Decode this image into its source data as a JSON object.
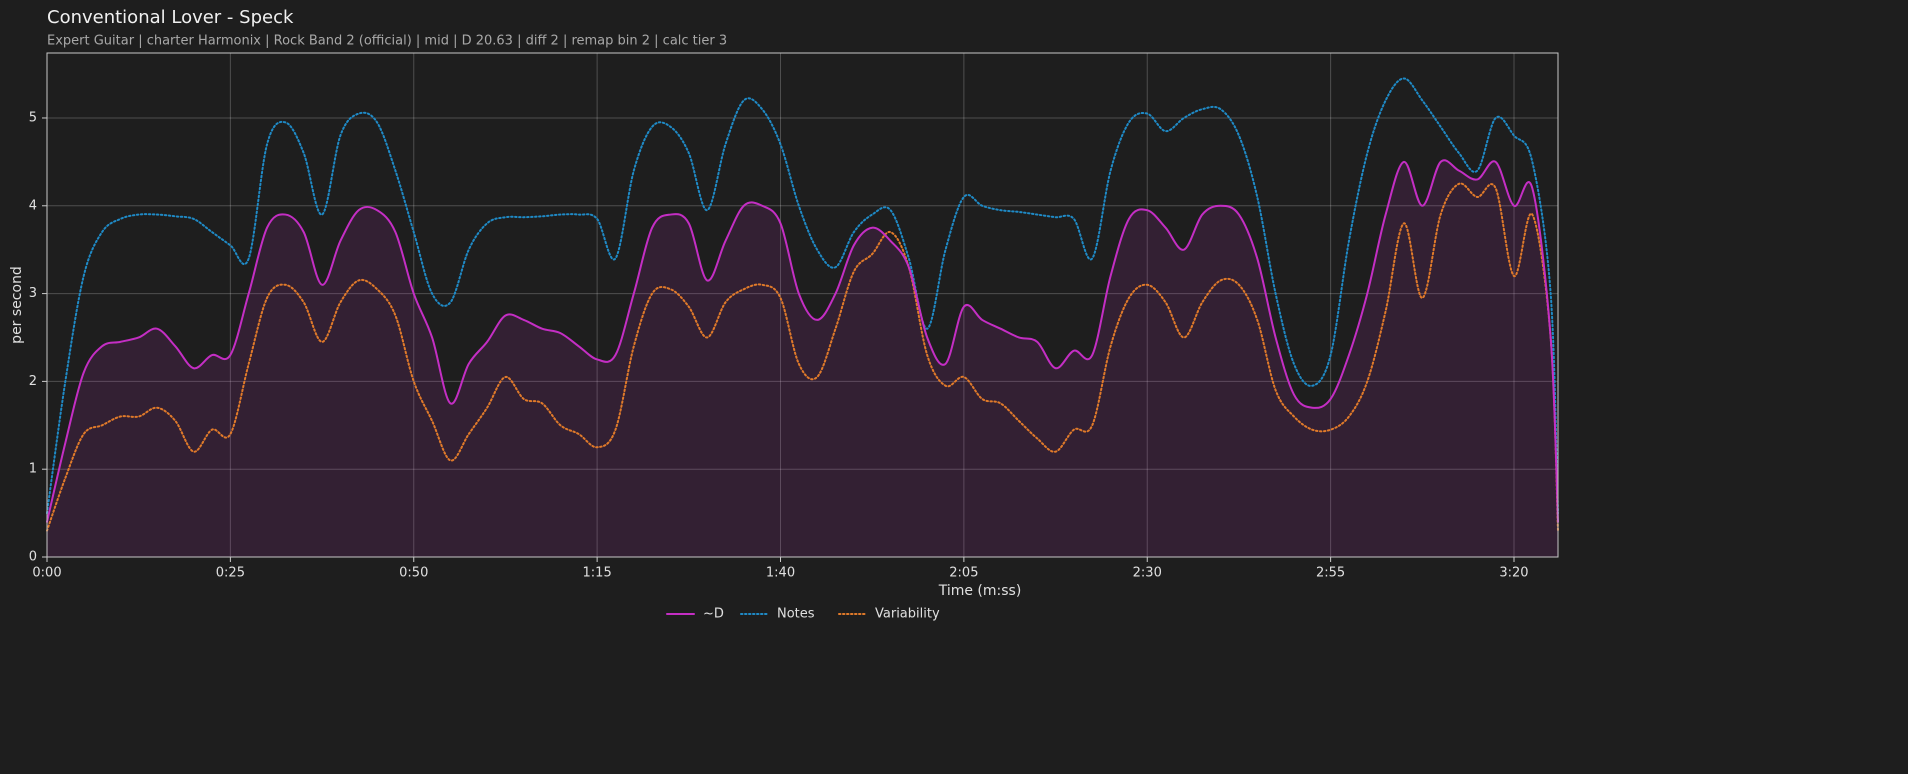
{
  "chart_data": {
    "type": "line",
    "title": "Conventional Lover - Speck",
    "subtitle": "Expert Guitar  |  charter Harmonix  |  Rock Band 2 (official)  |  mid  |  D 20.63  |  diff 2  |  remap bin 2  |  calc tier 3",
    "xlabel": "Time (m:ss)",
    "ylabel": "per second",
    "x": [
      0,
      2.5,
      5,
      7.5,
      10,
      12.5,
      15,
      17.5,
      20,
      22.5,
      25,
      27.5,
      30,
      32.5,
      35,
      37.5,
      40,
      42.5,
      45,
      47.5,
      50,
      52.5,
      55,
      57.5,
      60,
      62.5,
      65,
      67.5,
      70,
      72.5,
      75,
      77.5,
      80,
      82.5,
      85,
      87.5,
      90,
      92.5,
      95,
      97.5,
      100,
      102.5,
      105,
      107.5,
      110,
      112.5,
      115,
      117.5,
      120,
      122.5,
      125,
      127.5,
      130,
      132.5,
      135,
      137.5,
      140,
      142.5,
      145,
      147.5,
      150,
      152.5,
      155,
      157.5,
      160,
      162.5,
      165,
      167.5,
      170,
      172.5,
      175,
      177.5,
      180,
      182.5,
      185,
      187.5,
      190,
      192.5,
      195,
      197.5,
      200,
      202.5,
      205,
      206
    ],
    "series": [
      {
        "name": "~D",
        "color": "#c42ec4",
        "dash": "solid",
        "fill": true,
        "values": [
          0.4,
          1.3,
          2.1,
          2.4,
          2.45,
          2.5,
          2.6,
          2.4,
          2.15,
          2.3,
          2.3,
          3.0,
          3.75,
          3.9,
          3.7,
          3.1,
          3.6,
          3.95,
          3.95,
          3.7,
          3.0,
          2.5,
          1.75,
          2.2,
          2.45,
          2.75,
          2.7,
          2.6,
          2.55,
          2.4,
          2.25,
          2.3,
          3.0,
          3.75,
          3.9,
          3.8,
          3.15,
          3.6,
          4.0,
          4.0,
          3.8,
          3.0,
          2.7,
          3.0,
          3.55,
          3.75,
          3.6,
          3.3,
          2.5,
          2.2,
          2.85,
          2.7,
          2.6,
          2.5,
          2.45,
          2.15,
          2.35,
          2.3,
          3.2,
          3.85,
          3.95,
          3.75,
          3.5,
          3.9,
          4.0,
          3.9,
          3.4,
          2.5,
          1.85,
          1.7,
          1.8,
          2.3,
          3.0,
          3.9,
          4.5,
          4.0,
          4.5,
          4.4,
          4.3,
          4.5,
          4.0,
          4.2,
          2.5,
          0.4
        ]
      },
      {
        "name": "Notes",
        "color": "#1f8ac6",
        "dash": "dotted",
        "values": [
          0.5,
          2.0,
          3.2,
          3.7,
          3.85,
          3.9,
          3.9,
          3.88,
          3.85,
          3.7,
          3.55,
          3.4,
          4.7,
          4.95,
          4.6,
          3.9,
          4.8,
          5.05,
          4.95,
          4.4,
          3.7,
          3.0,
          2.9,
          3.5,
          3.8,
          3.87,
          3.87,
          3.88,
          3.9,
          3.9,
          3.85,
          3.4,
          4.4,
          4.9,
          4.9,
          4.6,
          3.95,
          4.7,
          5.2,
          5.1,
          4.7,
          4.0,
          3.5,
          3.3,
          3.7,
          3.9,
          3.95,
          3.4,
          2.6,
          3.5,
          4.1,
          4.0,
          3.95,
          3.93,
          3.9,
          3.87,
          3.85,
          3.4,
          4.4,
          4.95,
          5.05,
          4.85,
          5.0,
          5.1,
          5.1,
          4.8,
          4.1,
          3.0,
          2.2,
          1.95,
          2.3,
          3.6,
          4.6,
          5.2,
          5.45,
          5.2,
          4.9,
          4.6,
          4.4,
          5.0,
          4.8,
          4.5,
          3.0,
          0.5
        ]
      },
      {
        "name": "Variability",
        "color": "#e07a2a",
        "dash": "dotted",
        "values": [
          0.3,
          0.9,
          1.4,
          1.5,
          1.6,
          1.6,
          1.7,
          1.55,
          1.2,
          1.45,
          1.4,
          2.2,
          2.95,
          3.1,
          2.9,
          2.45,
          2.9,
          3.15,
          3.05,
          2.75,
          2.0,
          1.55,
          1.1,
          1.4,
          1.7,
          2.05,
          1.8,
          1.75,
          1.5,
          1.4,
          1.25,
          1.45,
          2.4,
          3.0,
          3.05,
          2.85,
          2.5,
          2.9,
          3.05,
          3.1,
          2.95,
          2.2,
          2.05,
          2.6,
          3.25,
          3.45,
          3.7,
          3.3,
          2.3,
          1.95,
          2.05,
          1.8,
          1.75,
          1.55,
          1.35,
          1.2,
          1.45,
          1.5,
          2.4,
          2.95,
          3.1,
          2.9,
          2.5,
          2.9,
          3.15,
          3.1,
          2.7,
          1.9,
          1.6,
          1.45,
          1.45,
          1.6,
          2.0,
          2.8,
          3.8,
          2.95,
          3.9,
          4.25,
          4.1,
          4.2,
          3.2,
          3.9,
          2.5,
          0.3
        ]
      }
    ],
    "xlim": [
      0,
      206
    ],
    "xticks": [
      {
        "value": 0,
        "label": "0:00"
      },
      {
        "value": 25,
        "label": "0:25"
      },
      {
        "value": 50,
        "label": "0:50"
      },
      {
        "value": 75,
        "label": "1:15"
      },
      {
        "value": 100,
        "label": "1:40"
      },
      {
        "value": 125,
        "label": "2:05"
      },
      {
        "value": 150,
        "label": "2:30"
      },
      {
        "value": 175,
        "label": "2:55"
      },
      {
        "value": 200,
        "label": "3:20"
      }
    ],
    "ylim": [
      0,
      5.74
    ],
    "yticks": [
      0,
      1,
      2,
      3,
      4,
      5
    ],
    "grid": true,
    "legend": "bottom"
  }
}
